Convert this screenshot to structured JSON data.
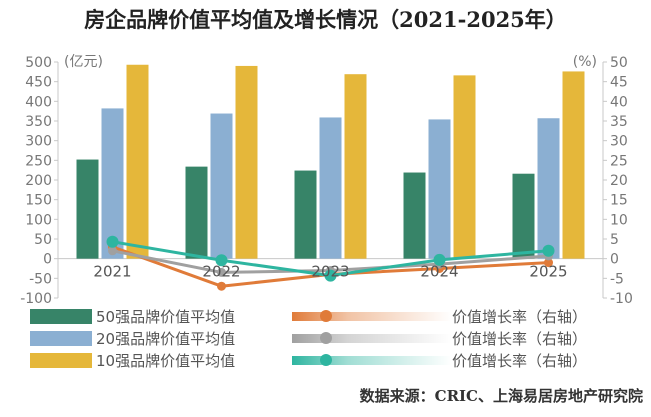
{
  "title": "房企品牌价值平均值及增长情况（2021-2025年）",
  "source": "数据来源：CRIC、上海易居房地产研究院",
  "colors": {
    "top50": "#378468",
    "top20": "#8BAFD2",
    "top10": "#E5B73A",
    "top50_growth": "#E07B39",
    "top20_growth": "#A0A0A0",
    "top10_growth": "#2EB5A0",
    "axis": "#C8C8C8"
  },
  "chart_data": {
    "type": "bar",
    "title": "房企品牌价值平均值及增长情况（2021-2025年）",
    "categories": [
      "2021",
      "2022",
      "2023",
      "2024",
      "2025"
    ],
    "left_axis": {
      "unit": "(亿元)",
      "ylim": [
        -100,
        500
      ],
      "ticks": [
        500,
        450,
        400,
        350,
        300,
        250,
        200,
        150,
        100,
        50,
        0,
        -50,
        -100
      ]
    },
    "right_axis": {
      "unit": "(%)",
      "ylim": [
        -10,
        50
      ],
      "ticks": [
        50,
        45,
        40,
        35,
        30,
        25,
        20,
        15,
        10,
        5,
        0,
        -5,
        -10
      ]
    },
    "bar_series": [
      {
        "name": "50强品牌价值平均值",
        "color": "#378468",
        "values": [
          252,
          234,
          224,
          219,
          216
        ]
      },
      {
        "name": "20强品牌价值平均值",
        "color": "#8BAFD2",
        "values": [
          382,
          369,
          359,
          354,
          357
        ]
      },
      {
        "name": "10强品牌价值平均值",
        "color": "#E5B73A",
        "values": [
          493,
          490,
          469,
          466,
          476
        ]
      }
    ],
    "line_series": [
      {
        "name": "50强品牌价值平均值增长率（右轴）",
        "color": "#E07B39",
        "values": [
          3,
          -7,
          -4,
          -2.5,
          -1
        ]
      },
      {
        "name": "20强品牌价值平均值增长率（右轴）",
        "color": "#A0A0A0",
        "values": [
          2,
          -3.5,
          -3,
          -1.4,
          0.7
        ]
      },
      {
        "name": "10强品牌价值平均值增长率（右轴）",
        "color": "#2EB5A0",
        "values": [
          4.3,
          -0.4,
          -4.3,
          -0.3,
          2
        ]
      }
    ],
    "legend": {
      "placement": "bottom",
      "bar_labels": [
        "50强品牌价值平均值",
        "20强品牌价值平均值",
        "10强品牌价值平均值"
      ],
      "line_labels": [
        "价值增长率（右轴）",
        "价值增长率（右轴）",
        "价值增长率（右轴）"
      ]
    },
    "grid": false
  }
}
